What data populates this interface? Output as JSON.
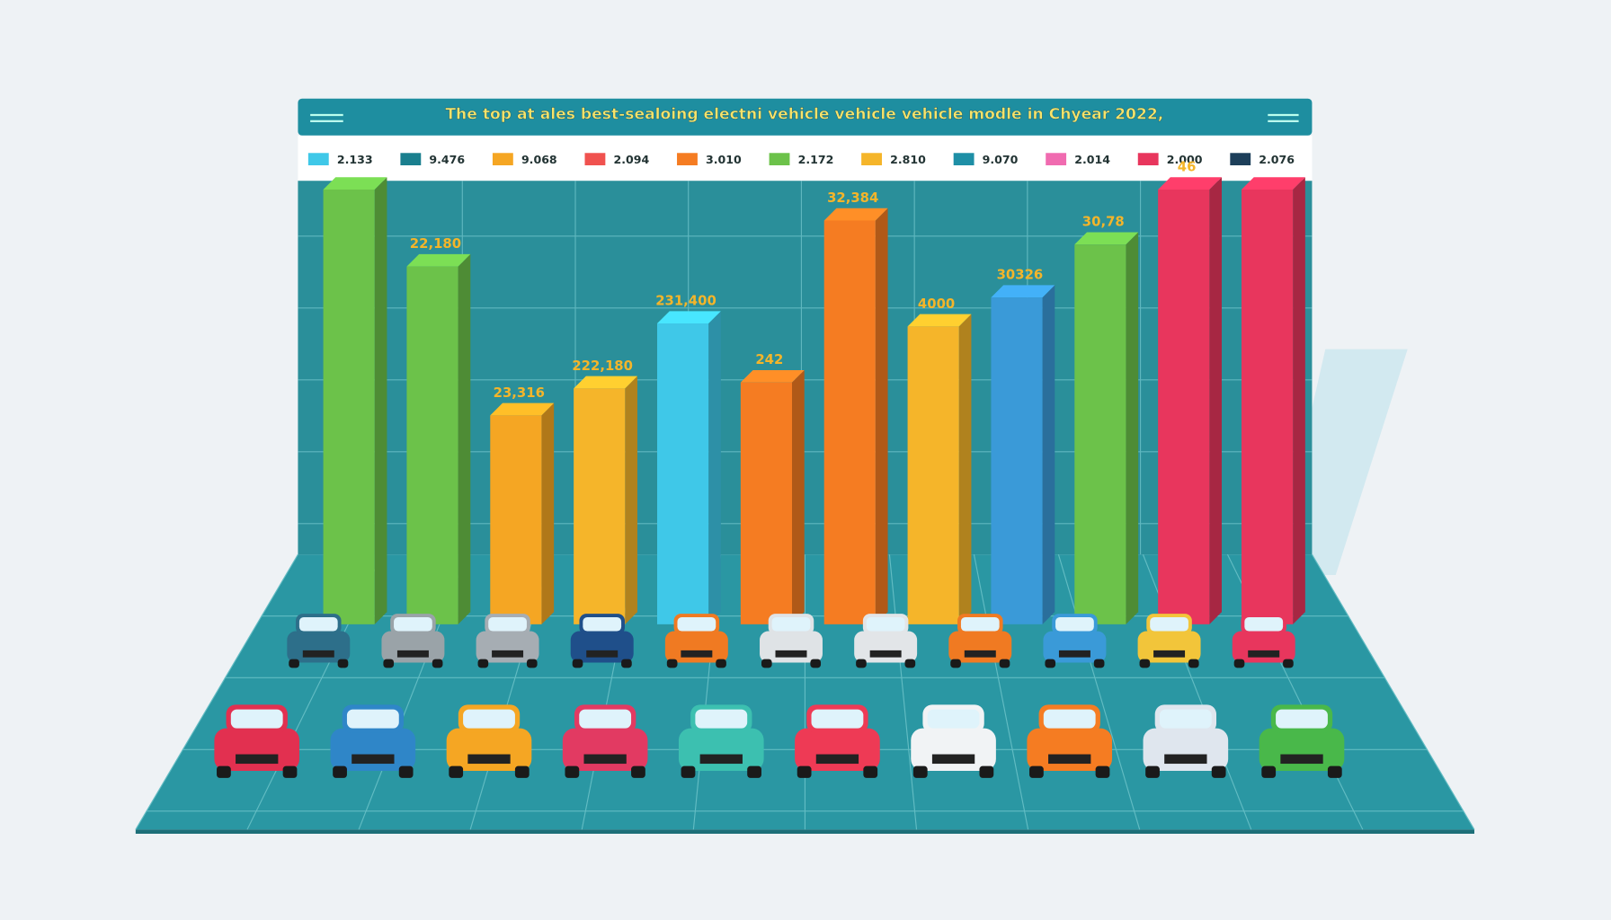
{
  "chart_data": {
    "type": "bar",
    "title": "The top at ales best-sealoing electni vehicle vehicle vehicle modle in Chyear 2022,",
    "legend": [
      {
        "name": "2.133",
        "color": "#3fc8e8"
      },
      {
        "name": "9.476",
        "color": "#1a7f8e"
      },
      {
        "name": "9.068",
        "color": "#f5a623"
      },
      {
        "name": "2.094",
        "color": "#f0524f"
      },
      {
        "name": "3.010",
        "color": "#f57c22"
      },
      {
        "name": "2.172",
        "color": "#6cc24a"
      },
      {
        "name": "2.810",
        "color": "#f5b52a"
      },
      {
        "name": "9.070",
        "color": "#1e8fa6"
      },
      {
        "name": "2.014",
        "color": "#f06bb0"
      },
      {
        "name": "2.000",
        "color": "#e8365d"
      },
      {
        "name": "2.076",
        "color": "#1d3f5a"
      }
    ],
    "values": [
      43500,
      35800,
      20900,
      23600,
      30100,
      24200,
      40400,
      29800,
      32700,
      38000,
      43500,
      43500
    ],
    "colors": [
      "#6cc24a",
      "#6cc24a",
      "#f5a623",
      "#f5b52a",
      "#3fc8e8",
      "#f57c22",
      "#f57c22",
      "#f5b52a",
      "#3a9ad8",
      "#6cc24a",
      "#e8365d",
      "#e8365d"
    ],
    "annotations": [
      "22,180",
      "23,316",
      "222,180",
      "231,400",
      "242",
      "32,384",
      "4000",
      "30326",
      "30,78",
      "46"
    ],
    "ylim": [
      0,
      45000
    ]
  }
}
